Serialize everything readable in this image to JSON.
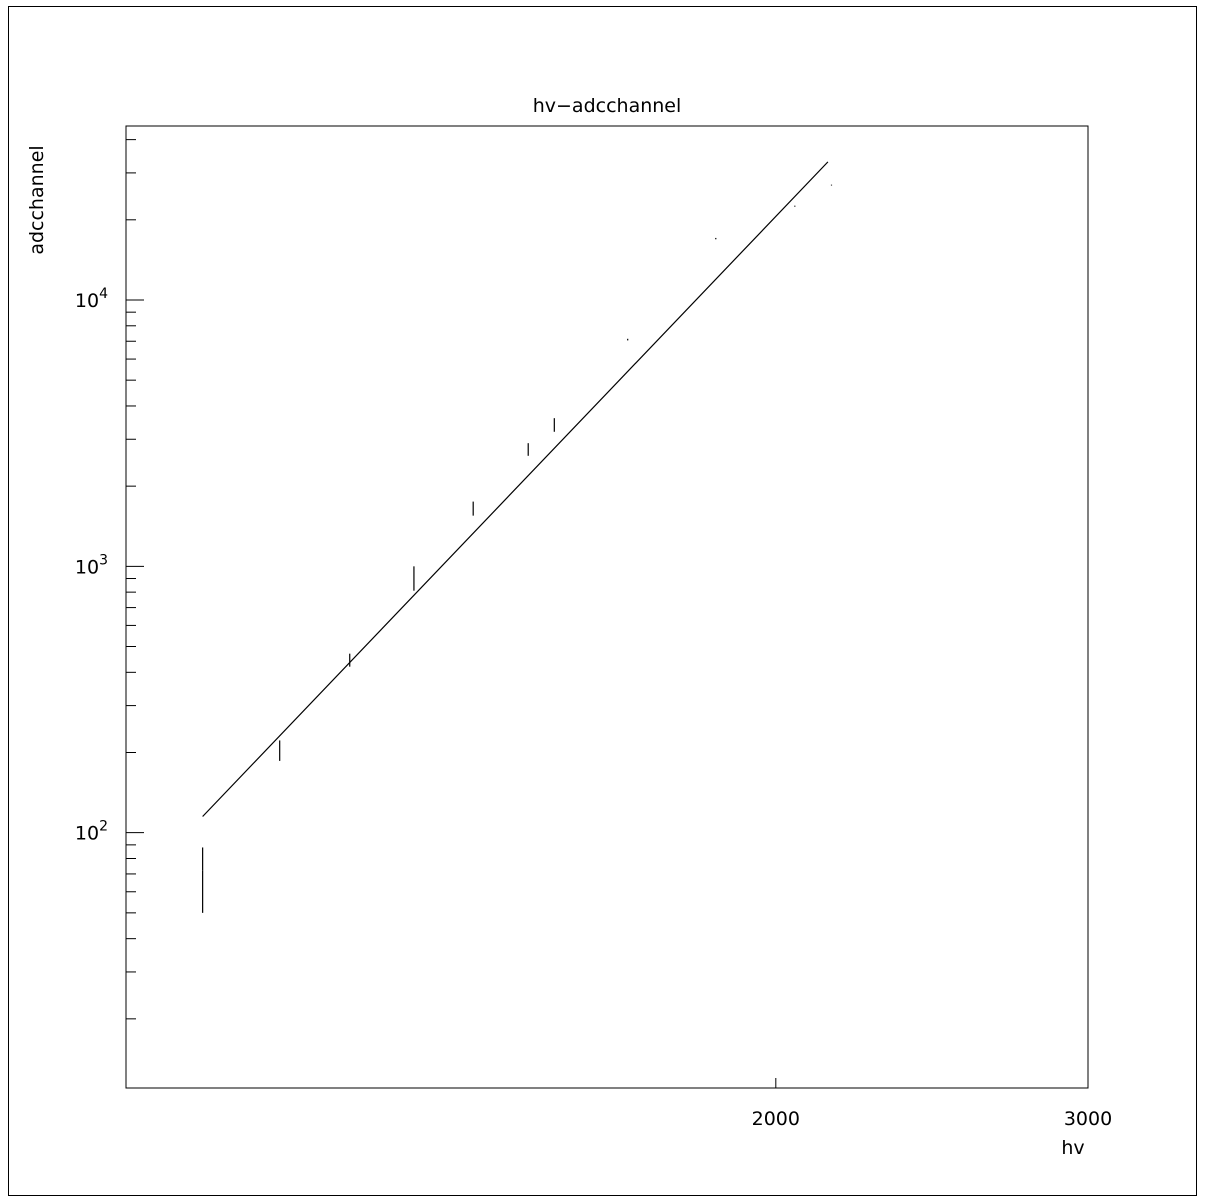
{
  "chart_data": {
    "type": "scatter",
    "title": "hv−adcchannel",
    "xlabel": "hv",
    "ylabel": "adcchannel",
    "x_scale": "log",
    "y_scale": "log",
    "xlim": [
      860,
      3000
    ],
    "ylim": [
      11,
      45000
    ],
    "x_ticks": [
      {
        "value": 2000,
        "label": "2000"
      },
      {
        "value": 3000,
        "label": "3000"
      }
    ],
    "y_ticks": [
      {
        "value": 100,
        "base": "10",
        "exp": "2"
      },
      {
        "value": 1000,
        "base": "10",
        "exp": "3"
      },
      {
        "value": 10000,
        "base": "10",
        "exp": "4"
      }
    ],
    "points": [
      {
        "x": 950,
        "y": 62,
        "ylow": 50,
        "yhigh": 72
      },
      {
        "x": 950,
        "y": 75,
        "ylow": 72,
        "yhigh": 88
      },
      {
        "x": 1050,
        "y": 205,
        "ylow": 186,
        "yhigh": 222
      },
      {
        "x": 1150,
        "y": 440,
        "ylow": 420,
        "yhigh": 470
      },
      {
        "x": 1250,
        "y": 900,
        "ylow": 810,
        "yhigh": 1000
      },
      {
        "x": 1350,
        "y": 1650,
        "ylow": 1550,
        "yhigh": 1750
      },
      {
        "x": 1450,
        "y": 2750,
        "ylow": 2600,
        "yhigh": 2900
      },
      {
        "x": 1500,
        "y": 3400,
        "ylow": 3200,
        "yhigh": 3600
      },
      {
        "x": 1650,
        "y": 7100,
        "ylow": 7050,
        "yhigh": 7150
      },
      {
        "x": 1850,
        "y": 17000,
        "ylow": 16900,
        "yhigh": 17100
      },
      {
        "x": 2050,
        "y": 22500,
        "ylow": 22400,
        "yhigh": 22600
      },
      {
        "x": 2150,
        "y": 27000,
        "ylow": 26900,
        "yhigh": 27100
      }
    ],
    "fit_line": [
      {
        "x": 950,
        "y": 115
      },
      {
        "x": 2140,
        "y": 33000
      }
    ]
  }
}
